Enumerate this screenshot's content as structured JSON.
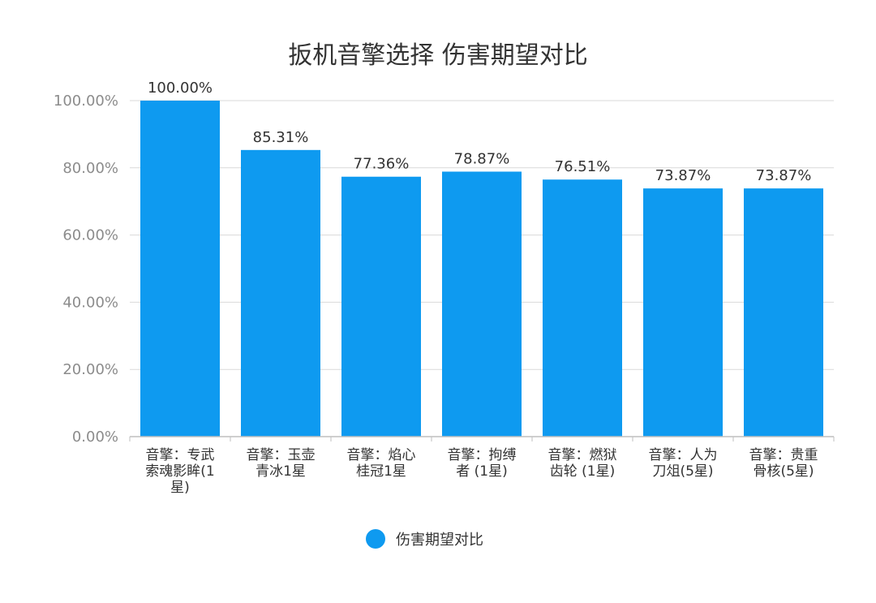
{
  "chart_data": {
    "type": "bar",
    "title": "扳机音擎选择 伤害期望对比",
    "categories": [
      [
        "音擎：专武",
        "索魂影眸(1",
        "星)"
      ],
      [
        "音擎：玉壶",
        "青冰1星"
      ],
      [
        "音擎：焰心",
        "桂冠1星"
      ],
      [
        "音擎：拘缚",
        "者 (1星)"
      ],
      [
        "音擎：燃狱",
        "齿轮 (1星)"
      ],
      [
        "音擎：人为",
        "刀俎(5星)"
      ],
      [
        "音擎：贵重",
        "骨核(5星)"
      ]
    ],
    "series": [
      {
        "name": "伤害期望对比",
        "values": [
          100.0,
          85.31,
          77.36,
          78.87,
          76.51,
          73.87,
          73.87
        ],
        "value_labels": [
          "100.00%",
          "85.31%",
          "77.36%",
          "78.87%",
          "76.51%",
          "73.87%",
          "73.87%"
        ]
      }
    ],
    "ylim": [
      0,
      100
    ],
    "yticks": [
      "0.00%",
      "20.00%",
      "40.00%",
      "60.00%",
      "80.00%",
      "100.00%"
    ],
    "grid": true,
    "legend_position": "bottom-center",
    "colors": {
      "bar": "#0e9af0",
      "grid": "#d9d9d9",
      "axis": "#bfbfbf"
    }
  }
}
